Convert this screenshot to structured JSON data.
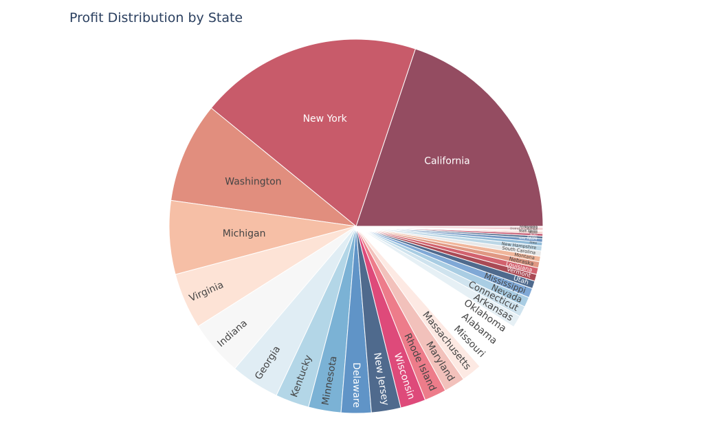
{
  "chart_data": {
    "type": "pie",
    "title": "Profit Distribution by State",
    "legend": "none",
    "slices": [
      {
        "label": "California",
        "value": 76381,
        "color": "#944c61"
      },
      {
        "label": "New York",
        "value": 74039,
        "color": "#c85b6a"
      },
      {
        "label": "Washington",
        "value": 33403,
        "color": "#e18e7e"
      },
      {
        "label": "Michigan",
        "value": 24463,
        "color": "#f6bfa6"
      },
      {
        "label": "Virginia",
        "value": 18598,
        "color": "#fde3d6"
      },
      {
        "label": "Indiana",
        "value": 18383,
        "color": "#f7f7f7"
      },
      {
        "label": "Georgia",
        "value": 16250,
        "color": "#e0edf4"
      },
      {
        "label": "Kentucky",
        "value": 11200,
        "color": "#b3d6e7"
      },
      {
        "label": "Minnesota",
        "value": 10823,
        "color": "#7bb2d5"
      },
      {
        "label": "Delaware",
        "value": 9977,
        "color": "#6094c7"
      },
      {
        "label": "New Jersey",
        "value": 9773,
        "color": "#4f6a8d"
      },
      {
        "label": "Wisconsin",
        "value": 8402,
        "color": "#de4a7a"
      },
      {
        "label": "Rhode Island",
        "value": 7286,
        "color": "#ed7c8a"
      },
      {
        "label": "Maryland",
        "value": 7031,
        "color": "#f2c1bb"
      },
      {
        "label": "Massachusetts",
        "value": 6786,
        "color": "#fde9e3"
      },
      {
        "label": "Missouri",
        "value": 6436,
        "color": "#ffffff"
      },
      {
        "label": "Alabama",
        "value": 5787,
        "color": "#ffffff"
      },
      {
        "label": "Oklahoma",
        "value": 4854,
        "color": "#ffffff"
      },
      {
        "label": "Arkansas",
        "value": 4009,
        "color": "#e6f0f5"
      },
      {
        "label": "Connecticut",
        "value": 3511,
        "color": "#cfe3ee"
      },
      {
        "label": "Nevada",
        "value": 3317,
        "color": "#a9cde3"
      },
      {
        "label": "Mississippi",
        "value": 3172,
        "color": "#7fa8d6"
      },
      {
        "label": "Utah",
        "value": 2547,
        "color": "#4f6a8d"
      },
      {
        "label": "Vermont",
        "value": 2245,
        "color": "#a94a55"
      },
      {
        "label": "Louisiana",
        "value": 2196,
        "color": "#d2626e"
      },
      {
        "label": "Nebraska",
        "value": 2037,
        "color": "#e09883"
      },
      {
        "label": "Montana",
        "value": 1833,
        "color": "#f0b69b"
      },
      {
        "label": "South Carolina",
        "value": 1769,
        "color": "#e8e8e8"
      },
      {
        "label": "New Hampshire",
        "value": 1707,
        "color": "#bcd7e6"
      },
      {
        "label": "Iowa",
        "value": 1184,
        "color": "#93bcd8"
      },
      {
        "label": "New Mexico",
        "value": 1157,
        "color": "#6f95c2"
      },
      {
        "label": "Kansas",
        "value": 836,
        "color": "#56708f"
      },
      {
        "label": "Idaho",
        "value": 827,
        "color": "#c55a72"
      },
      {
        "label": "Maine",
        "value": 454,
        "color": "#e7a29a"
      },
      {
        "label": "South Dakota",
        "value": 394,
        "color": "#f4c9bf"
      },
      {
        "label": "North Dakota",
        "value": 230,
        "color": "#dfe9ef"
      },
      {
        "label": "District of Columbia",
        "value": 1059,
        "color": "#f3d1d4"
      },
      {
        "label": "Wyoming",
        "value": 100,
        "color": "#c7dbe8"
      },
      {
        "label": "West Virginia",
        "value": 185,
        "color": "#9cb8d1"
      }
    ]
  }
}
